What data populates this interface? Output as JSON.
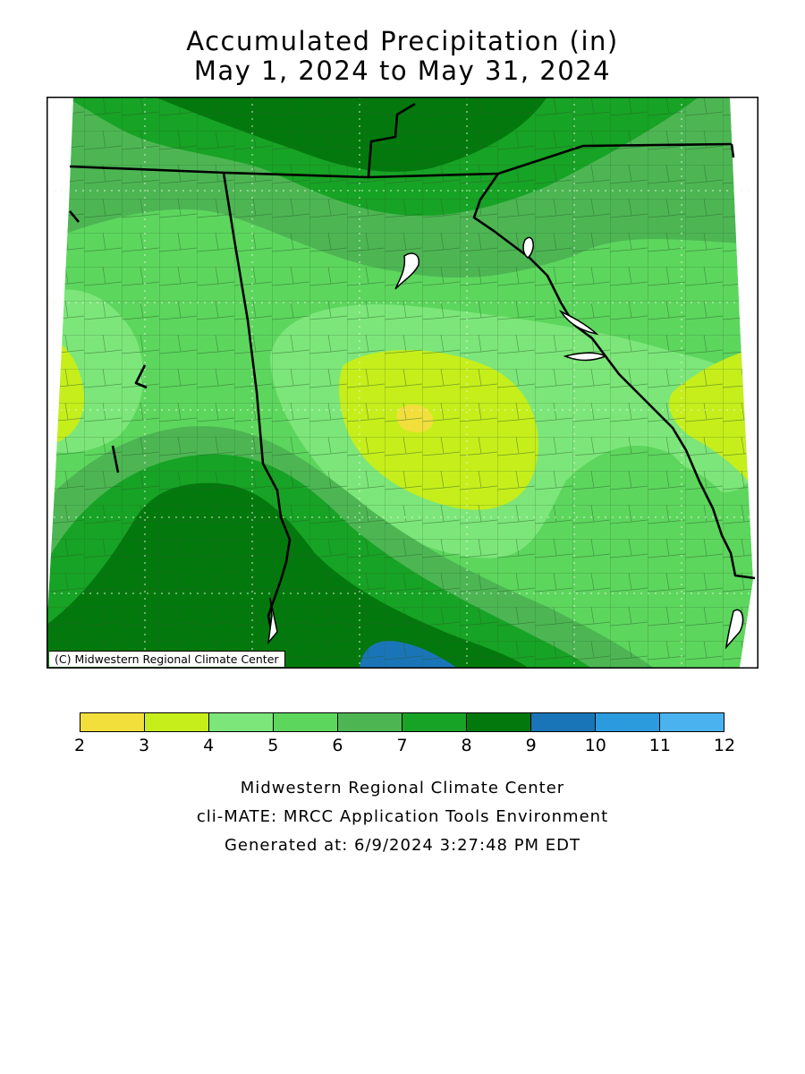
{
  "title": {
    "line1": "Accumulated Precipitation (in)",
    "line2": "May 1, 2024 to May 31, 2024"
  },
  "map": {
    "copyright": "(C) Midwestern Regional Climate Center"
  },
  "legend": {
    "bins": [
      {
        "from": 2,
        "to": 3,
        "color": "#f2df3c"
      },
      {
        "from": 3,
        "to": 4,
        "color": "#c6ee1b"
      },
      {
        "from": 4,
        "to": 5,
        "color": "#7de67a"
      },
      {
        "from": 5,
        "to": 6,
        "color": "#5dd65e"
      },
      {
        "from": 6,
        "to": 7,
        "color": "#4db653"
      },
      {
        "from": 7,
        "to": 8,
        "color": "#17a325"
      },
      {
        "from": 8,
        "to": 9,
        "color": "#03790d"
      },
      {
        "from": 9,
        "to": 10,
        "color": "#1a75b8"
      },
      {
        "from": 10,
        "to": 11,
        "color": "#2c9bde"
      },
      {
        "from": 11,
        "to": 12,
        "color": "#4ab3ef"
      }
    ],
    "tick_labels": [
      "2",
      "3",
      "4",
      "5",
      "6",
      "7",
      "8",
      "9",
      "10",
      "11",
      "12"
    ]
  },
  "footer": {
    "line1": "Midwestern Regional Climate Center",
    "line2": "cli-MATE: MRCC Application Tools Environment",
    "line3": "Generated at: 6/9/2024 3:27:48 PM EDT"
  }
}
